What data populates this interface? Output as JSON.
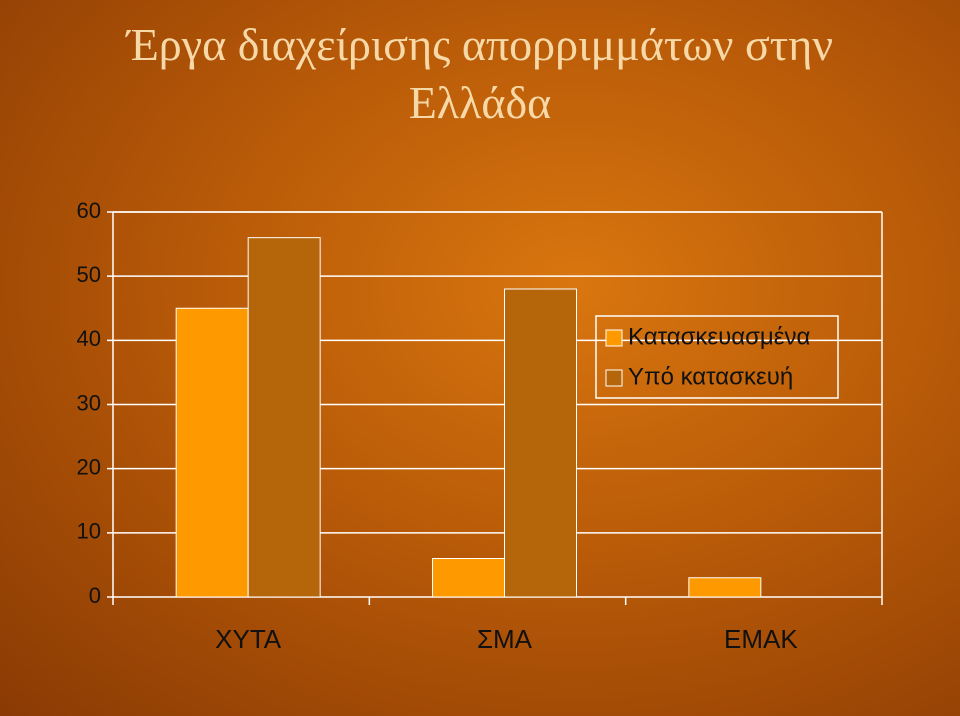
{
  "chart_data": {
    "type": "bar",
    "title": "Έργα διαχείρισης απορριμμάτων στην Ελλάδα",
    "categories": [
      "ΧΥΤΑ",
      "ΣΜΑ",
      "ΕΜΑΚ"
    ],
    "series": [
      {
        "name": "Κατασκευασμένα",
        "color": "#ff9900",
        "values": [
          45,
          6,
          3
        ]
      },
      {
        "name": "Υπό κατασκευή",
        "color": "#b5660a",
        "values": [
          56,
          48,
          0
        ]
      }
    ],
    "ylim": [
      0,
      60
    ],
    "yticks": [
      0,
      10,
      20,
      30,
      40,
      50,
      60
    ],
    "grid": true,
    "legend": "right"
  }
}
